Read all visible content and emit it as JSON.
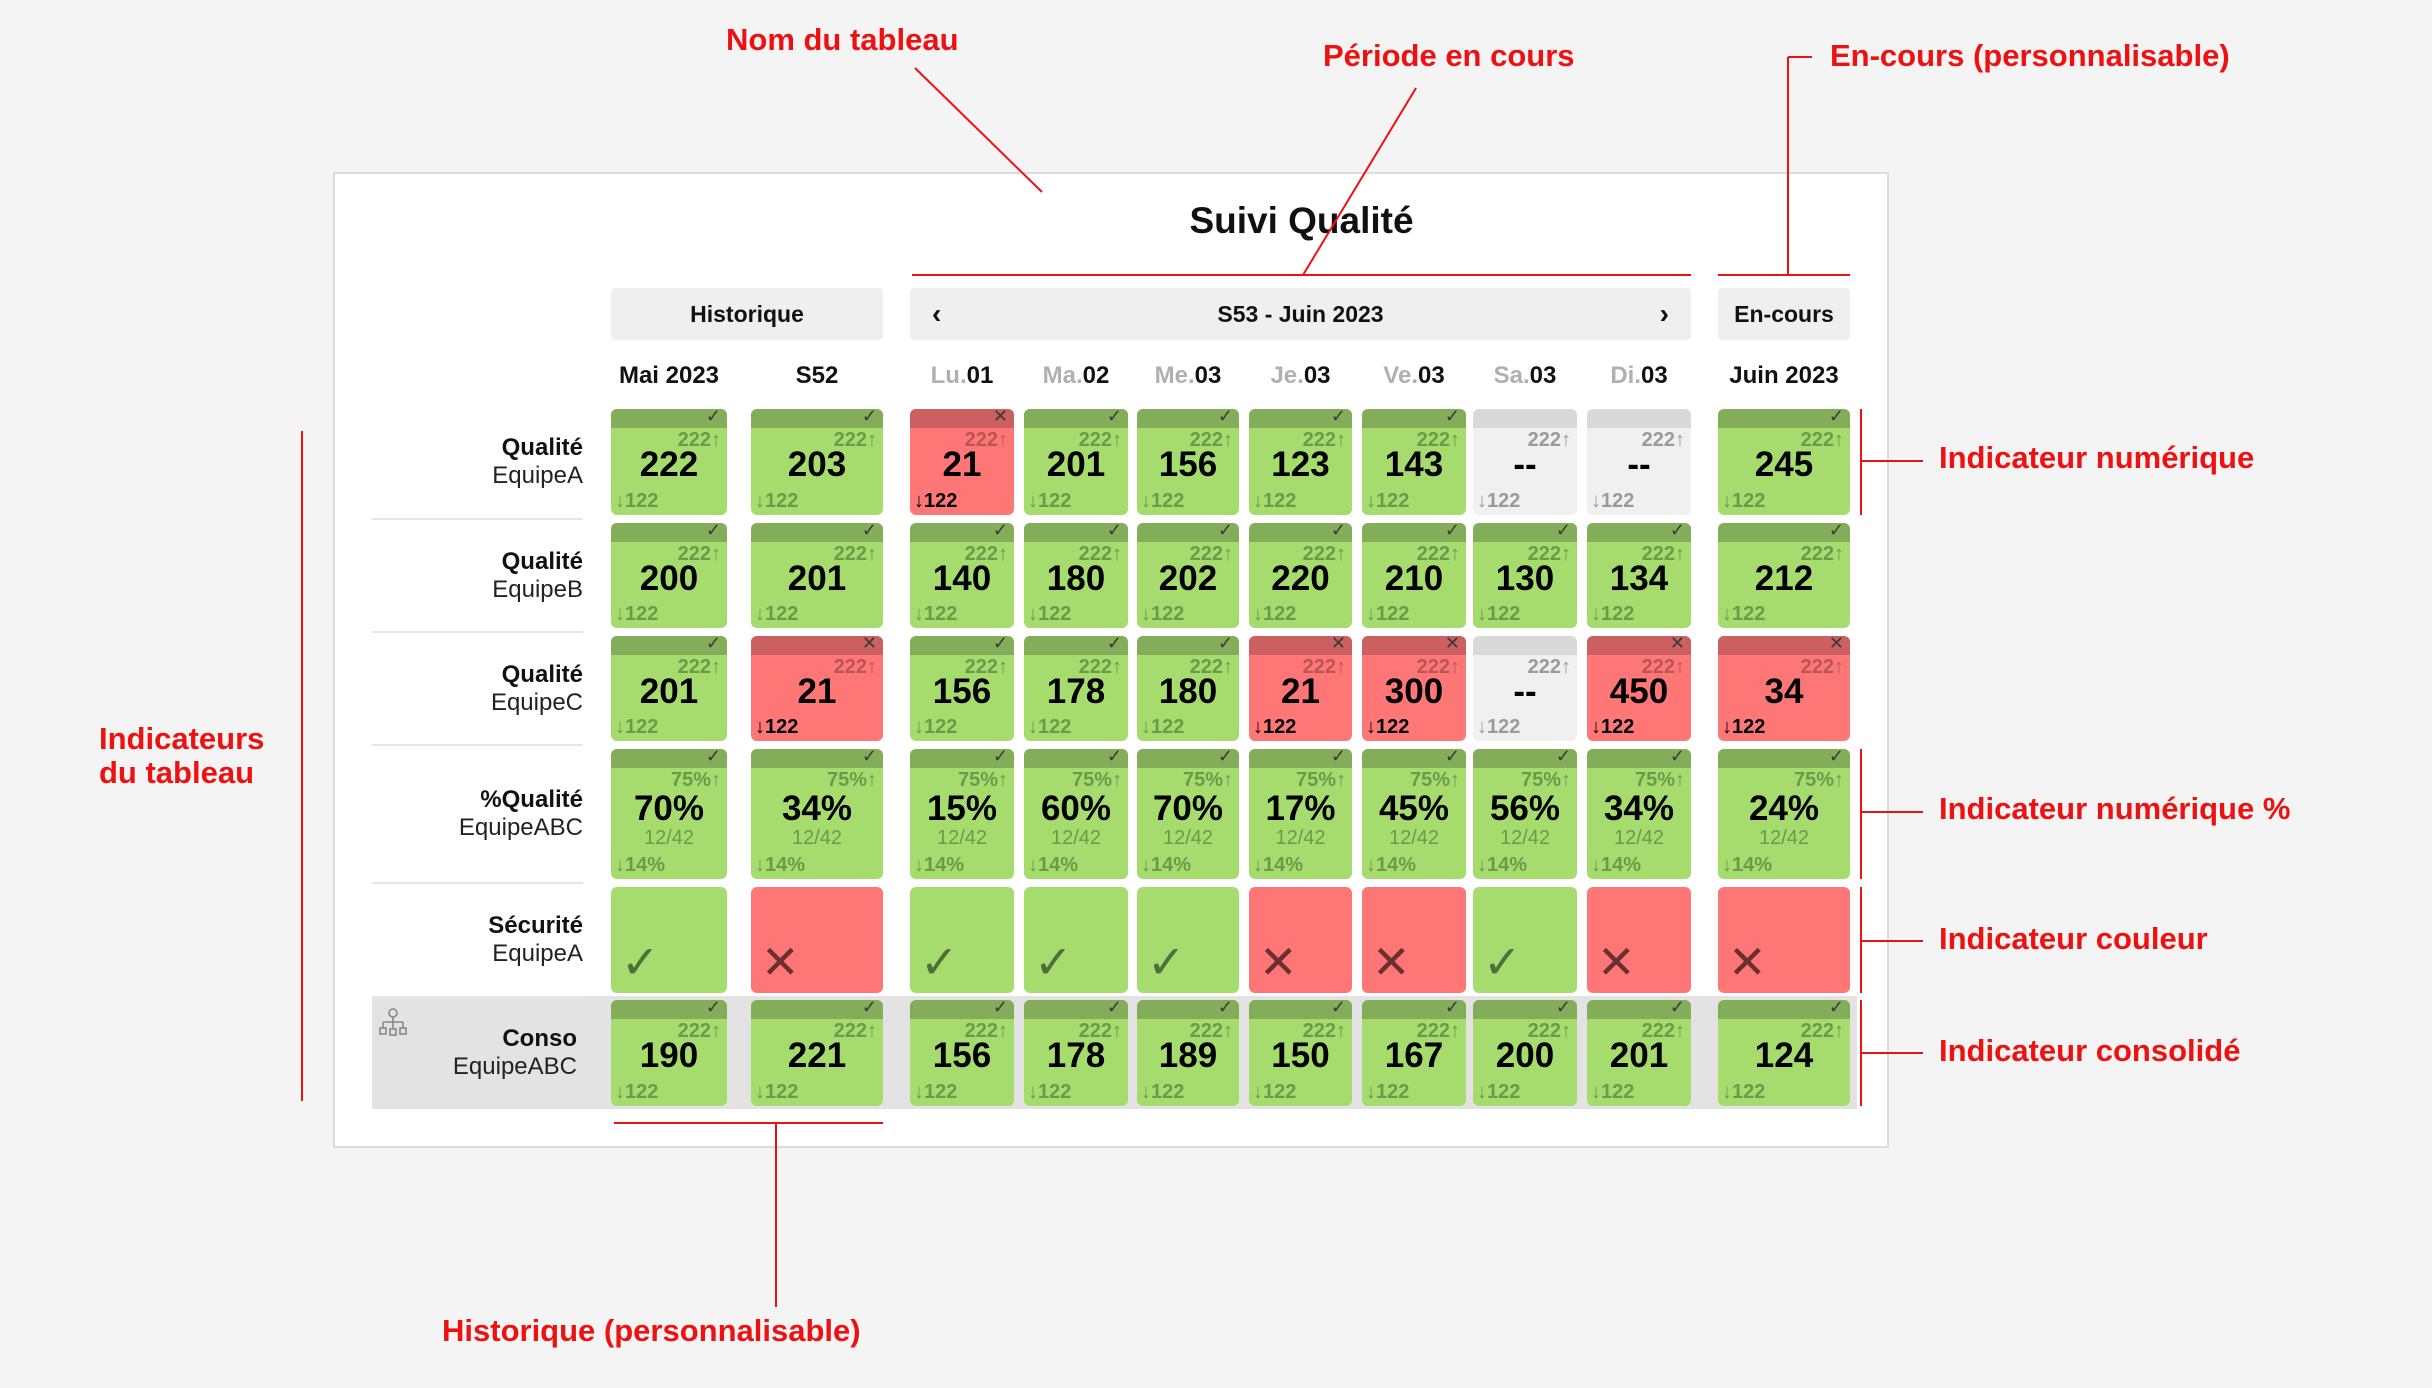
{
  "title": "Suivi Qualité",
  "buttons": {
    "history": "Historique",
    "period": "S53 - Juin 2023",
    "prev": "‹",
    "next": "›",
    "current": "En-cours"
  },
  "columns": [
    {
      "pre": "",
      "label": "Mai 2023"
    },
    {
      "pre": "",
      "label": "S52"
    },
    {
      "pre": "Lu.",
      "label": "01"
    },
    {
      "pre": "Ma.",
      "label": "02"
    },
    {
      "pre": "Me.",
      "label": "03"
    },
    {
      "pre": "Je.",
      "label": "03"
    },
    {
      "pre": "Ve.",
      "label": "03"
    },
    {
      "pre": "Sa.",
      "label": "03"
    },
    {
      "pre": "Di.",
      "label": "03"
    },
    {
      "pre": "",
      "label": "Juin 2023"
    }
  ],
  "rows": [
    {
      "title": "Qualité",
      "team": "EquipeA",
      "type": "numeric",
      "target": "222",
      "prev": "122",
      "values": [
        "222",
        "203",
        "21",
        "201",
        "156",
        "123",
        "143",
        "--",
        "--",
        "245"
      ],
      "status": [
        "ok",
        "ok",
        "ko",
        "ok",
        "ok",
        "ok",
        "ok",
        "none",
        "none",
        "ok"
      ]
    },
    {
      "title": "Qualité",
      "team": "EquipeB",
      "type": "numeric",
      "target": "222",
      "prev": "122",
      "values": [
        "200",
        "201",
        "140",
        "180",
        "202",
        "220",
        "210",
        "130",
        "134",
        "212"
      ],
      "status": [
        "ok",
        "ok",
        "ok",
        "ok",
        "ok",
        "ok",
        "ok",
        "ok",
        "ok",
        "ok"
      ]
    },
    {
      "title": "Qualité",
      "team": "EquipeC",
      "type": "numeric",
      "target": "222",
      "prev": "122",
      "values": [
        "201",
        "21",
        "156",
        "178",
        "180",
        "21",
        "300",
        "--",
        "450",
        "34"
      ],
      "status": [
        "ok",
        "ko",
        "ok",
        "ok",
        "ok",
        "ko",
        "ko",
        "none",
        "ko",
        "ko"
      ]
    },
    {
      "title": "%Qualité",
      "team": "EquipeABC",
      "type": "percent",
      "target": "75%",
      "prev": "14%",
      "ratio": "12/42",
      "values": [
        "70%",
        "34%",
        "15%",
        "60%",
        "70%",
        "17%",
        "45%",
        "56%",
        "34%",
        "24%"
      ],
      "status": [
        "ok",
        "ok",
        "ok",
        "ok",
        "ok",
        "ok",
        "ok",
        "ok",
        "ok",
        "ok"
      ]
    },
    {
      "title": "Sécurité",
      "team": "EquipeA",
      "type": "color",
      "status": [
        "ok",
        "ko",
        "ok",
        "ok",
        "ok",
        "ko",
        "ko",
        "ok",
        "ko",
        "ko"
      ]
    },
    {
      "title": "Conso",
      "team": "EquipeABC",
      "type": "consolidated",
      "target": "222",
      "prev": "122",
      "values": [
        "190",
        "221",
        "156",
        "178",
        "189",
        "150",
        "167",
        "200",
        "201",
        "124"
      ],
      "status": [
        "ok",
        "ok",
        "ok",
        "ok",
        "ok",
        "ok",
        "ok",
        "ok",
        "ok",
        "ok"
      ]
    }
  ],
  "annotations": {
    "name": "Nom du tableau",
    "period": "Période en cours",
    "current": "En-cours (personnalisable)",
    "numeric": "Indicateur numérique",
    "percent": "Indicateur numérique %",
    "color": "Indicateur couleur",
    "consolidated": "Indicateur consolidé",
    "indicators_line1": "Indicateurs",
    "indicators_line2": "du tableau",
    "history": "Historique (personnalisable)"
  },
  "colors": {
    "ok": "#a6dc6e",
    "ko": "#ff7676",
    "none": "#f0f0f0",
    "annotation": "#ee1111"
  }
}
